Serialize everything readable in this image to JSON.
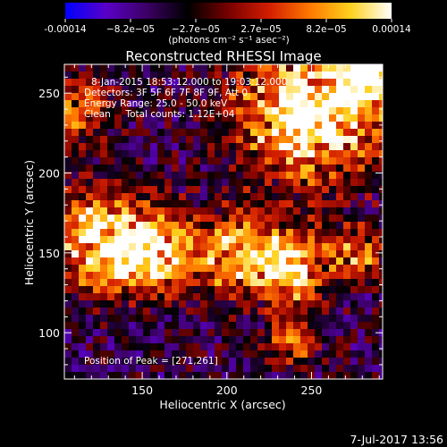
{
  "chart_data": {
    "type": "heatmap",
    "title": "Reconstructed RHESSI Image",
    "xlabel": "Heliocentric X (arcsec)",
    "ylabel": "Heliocentric Y (arcsec)",
    "xlim": [
      104,
      292
    ],
    "ylim": [
      71,
      268
    ],
    "xticks": [
      150,
      200,
      250
    ],
    "yticks": [
      100,
      150,
      200,
      250
    ],
    "colorbar": {
      "min": -0.00014,
      "max": 0.00014,
      "tick_labels": [
        "-0.00014",
        "−8.2e−05",
        "−2.7e−05",
        "2.7e−05",
        "8.2e−05",
        "0.00014"
      ],
      "unit_label": "(photons cm⁻² s⁻¹ asec⁻²)",
      "colors": [
        "#0000ff",
        "#5a00c8",
        "#3c0064",
        "#000000",
        "#780000",
        "#d21e00",
        "#ff7800",
        "#ffd21e",
        "#ffffff"
      ]
    },
    "annotations": [
      "8-Jan-2015 18:53:12.000 to 19:03:12.000",
      "Detectors: 3F 5F 6F 7F 8F 9F, Att 0",
      "Energy Range: 25.0 - 50.0 keV",
      "Clean     Total counts: 1.12E+04"
    ],
    "peak_label": "Position of Peak = [271,261]",
    "peak_position": [
      271,
      261
    ],
    "bright_regions": [
      {
        "x": 250,
        "y": 238,
        "extent": 42,
        "peak": 1.0
      },
      {
        "x": 285,
        "y": 262,
        "extent": 18,
        "peak": 1.0
      },
      {
        "x": 125,
        "y": 158,
        "extent": 30,
        "peak": 0.9
      },
      {
        "x": 158,
        "y": 150,
        "extent": 24,
        "peak": 0.75
      },
      {
        "x": 208,
        "y": 150,
        "extent": 26,
        "peak": 0.7
      },
      {
        "x": 240,
        "y": 140,
        "extent": 22,
        "peak": 0.75
      },
      {
        "x": 278,
        "y": 152,
        "extent": 16,
        "peak": 0.55
      },
      {
        "x": 240,
        "y": 95,
        "extent": 16,
        "peak": 0.5
      },
      {
        "x": 112,
        "y": 240,
        "extent": 20,
        "peak": 0.5
      }
    ]
  },
  "footer": {
    "timestamp": "7-Jul-2017 13:56"
  }
}
